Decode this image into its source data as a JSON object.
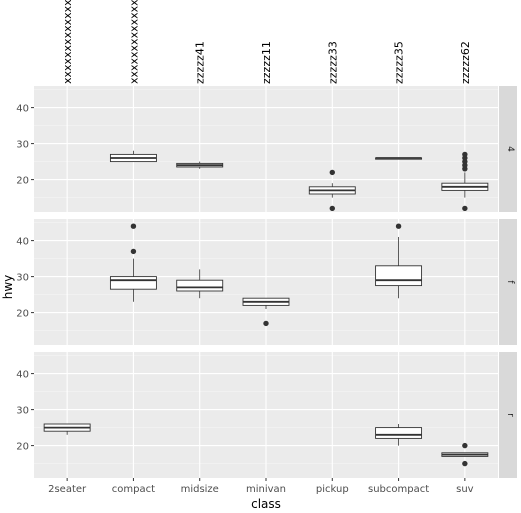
{
  "chart_data": {
    "type": "boxplot",
    "x_label": "class",
    "y_label": "hwy",
    "categories": [
      "2seater",
      "compact",
      "midsize",
      "minivan",
      "pickup",
      "subcompact",
      "suv"
    ],
    "top_labels": [
      "xxxxxxxxxxxxxxx",
      "xxxxxxxxxxxxxxxx",
      "zzzzz41",
      "zzzzz11",
      "zzzzz33",
      "zzzzz35",
      "zzzzz62"
    ],
    "y_ticks": [
      20,
      30,
      40
    ],
    "ylim": [
      11,
      46
    ],
    "grid": true,
    "panels": [
      {
        "strip": "4",
        "boxes": [
          {
            "category": "compact",
            "whisker_low": 25,
            "q1": 25,
            "median": 26,
            "q3": 27,
            "whisker_high": 28,
            "outliers": []
          },
          {
            "category": "midsize",
            "whisker_low": 23,
            "q1": 23.5,
            "median": 24,
            "q3": 24.5,
            "whisker_high": 25,
            "outliers": []
          },
          {
            "category": "pickup",
            "whisker_low": 15,
            "q1": 16,
            "median": 17,
            "q3": 18,
            "whisker_high": 19,
            "outliers": [
              12,
              22
            ]
          },
          {
            "category": "subcompact",
            "whisker_low": 26,
            "q1": 26,
            "median": 26,
            "q3": 26,
            "whisker_high": 26,
            "outliers": []
          },
          {
            "category": "suv",
            "whisker_low": 15,
            "q1": 17,
            "median": 18,
            "q3": 19,
            "whisker_high": 22,
            "outliers": [
              12,
              23,
              24,
              25,
              26,
              27
            ]
          }
        ]
      },
      {
        "strip": "f",
        "boxes": [
          {
            "category": "compact",
            "whisker_low": 23,
            "q1": 26.5,
            "median": 29,
            "q3": 30,
            "whisker_high": 35,
            "outliers": [
              37,
              44
            ]
          },
          {
            "category": "midsize",
            "whisker_low": 24,
            "q1": 26,
            "median": 27,
            "q3": 29,
            "whisker_high": 32,
            "outliers": []
          },
          {
            "category": "minivan",
            "whisker_low": 21,
            "q1": 22,
            "median": 23,
            "q3": 24,
            "whisker_high": 24,
            "outliers": [
              17
            ]
          },
          {
            "category": "subcompact",
            "whisker_low": 24,
            "q1": 27.5,
            "median": 29,
            "q3": 33,
            "whisker_high": 41,
            "outliers": [
              44
            ]
          }
        ]
      },
      {
        "strip": "r",
        "boxes": [
          {
            "category": "2seater",
            "whisker_low": 23,
            "q1": 24,
            "median": 25,
            "q3": 26,
            "whisker_high": 26,
            "outliers": []
          },
          {
            "category": "subcompact",
            "whisker_low": 20,
            "q1": 22,
            "median": 23,
            "q3": 25,
            "whisker_high": 26,
            "outliers": []
          },
          {
            "category": "suv",
            "whisker_low": 17,
            "q1": 17,
            "median": 17.5,
            "q3": 18,
            "whisker_high": 18,
            "outliers": [
              15,
              20
            ]
          }
        ]
      }
    ]
  }
}
